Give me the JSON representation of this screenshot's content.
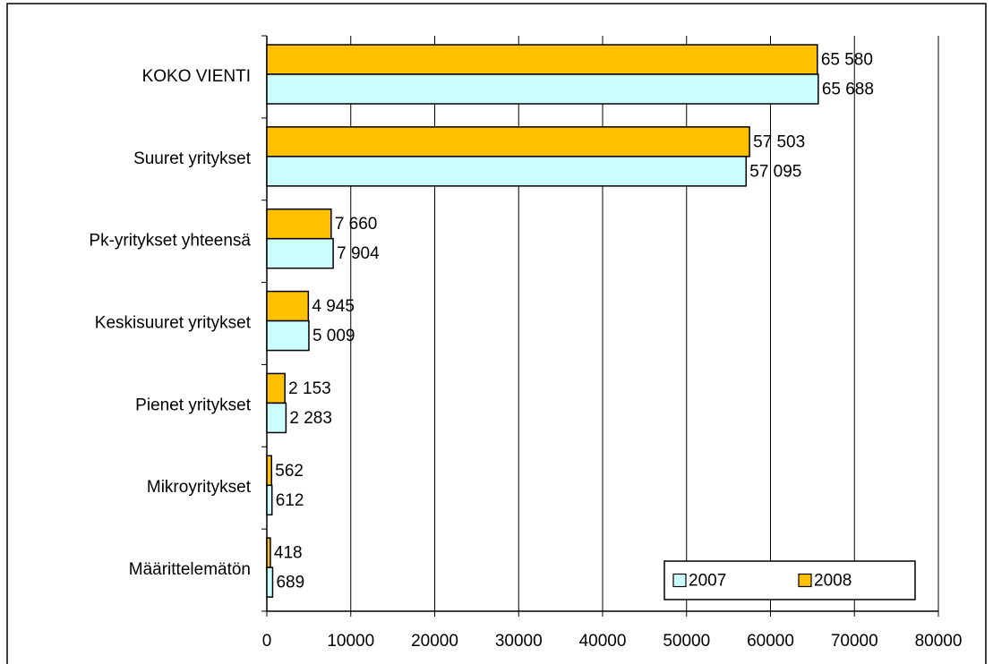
{
  "chart_data": {
    "type": "hbar",
    "categories": [
      "KOKO VIENTI",
      "Suuret yritykset",
      "Pk-yritykset yhteensä",
      "Keskisuuret yritykset",
      "Pienet yritykset",
      "Mikroyritykset",
      "Määrittelemätön"
    ],
    "series": [
      {
        "name": "2008",
        "color": "#FFC000",
        "values": [
          65580,
          57503,
          7660,
          4945,
          2153,
          562,
          418
        ],
        "value_labels": [
          "65 580",
          "57 503",
          "7 660",
          "4 945",
          "2 153",
          "562",
          "418"
        ]
      },
      {
        "name": "2007",
        "color": "#CCFFFF",
        "values": [
          65688,
          57095,
          7904,
          5009,
          2283,
          612,
          689
        ],
        "value_labels": [
          "65 688",
          "57 095",
          "7 904",
          "5 009",
          "2 283",
          "612",
          "689"
        ]
      }
    ],
    "xlim": [
      0,
      80000
    ],
    "xticks": [
      0,
      10000,
      20000,
      30000,
      40000,
      50000,
      60000,
      70000,
      80000
    ],
    "grid": true,
    "legend": "lower right"
  }
}
